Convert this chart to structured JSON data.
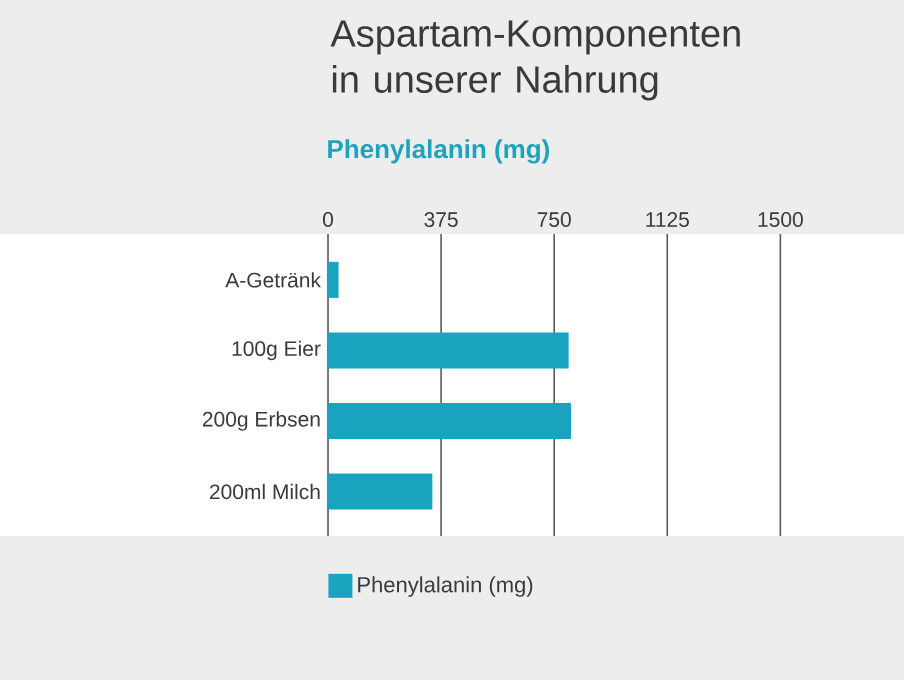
{
  "chart_data": {
    "type": "bar",
    "orientation": "horizontal",
    "title": "Aspartam-Komponenten in unserer Nahrung",
    "xlabel": "Phenylalanin (mg)",
    "categories": [
      "A-Getränk",
      "100g Eier",
      "200g Erbsen",
      "200ml Milch"
    ],
    "series": [
      {
        "name": "Phenylalanin (mg)",
        "color": "#1aa3bf",
        "values": [
          35,
          798,
          806,
          346
        ]
      }
    ],
    "xlim": [
      0,
      1910
    ],
    "xticks": [
      0,
      375,
      750,
      1125,
      1500
    ],
    "grid": "x",
    "legend": "bottom"
  }
}
